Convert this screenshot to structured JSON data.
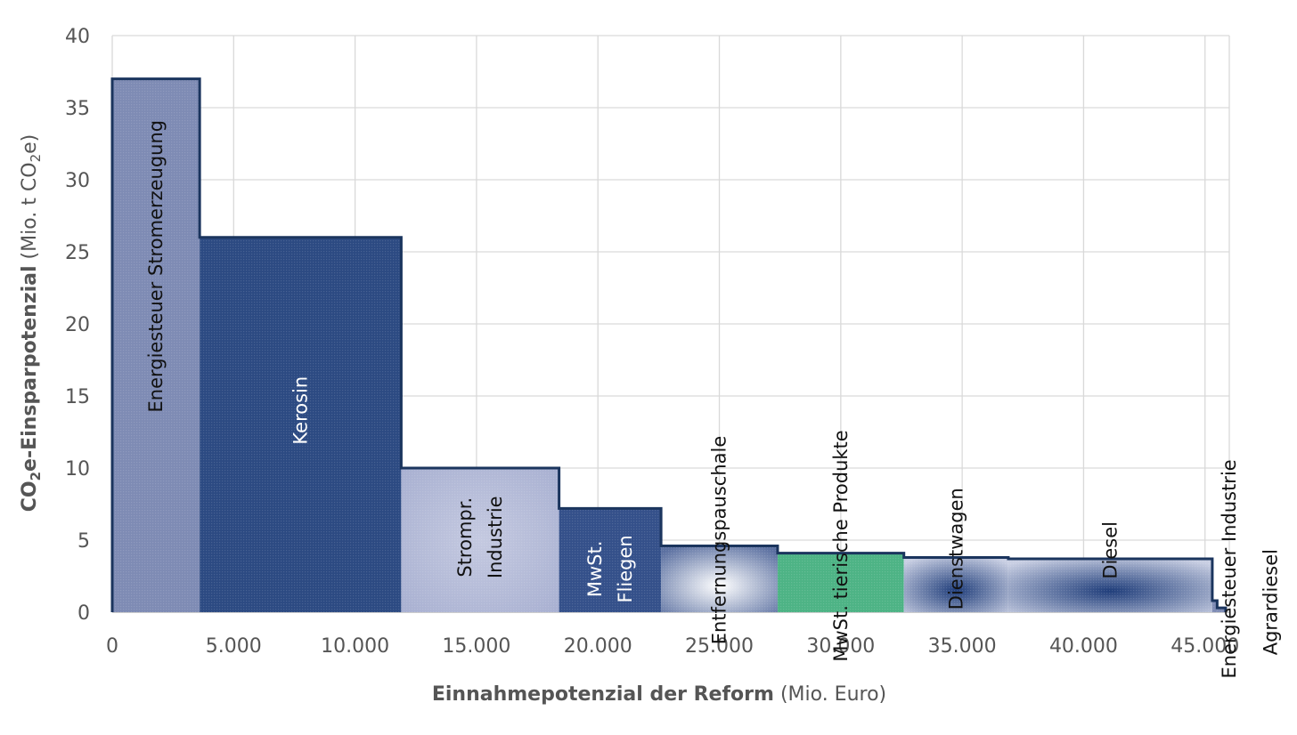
{
  "chart_data": {
    "type": "bar",
    "subtype": "variable-width step bars",
    "xlim": [
      0,
      46000
    ],
    "ylim": [
      0,
      40
    ],
    "grid": true,
    "x_ticks": [
      "0",
      "5.000",
      "10.000",
      "15.000",
      "20.000",
      "25.000",
      "30.000",
      "35.000",
      "40.000",
      "45.000"
    ],
    "y_ticks": [
      "0",
      "5",
      "10",
      "15",
      "20",
      "25",
      "30",
      "35",
      "40"
    ],
    "xlabel": {
      "bold": "Einnahmepotenzial der  Reform",
      "normal": " (Mio. Euro)"
    },
    "ylabel": {
      "bold_a": "CO",
      "bold_sub": "2",
      "bold_b": "e-Einsparpotenzial",
      "normal_a": " (Mio. t CO",
      "normal_sub": "2",
      "normal_b": "e)"
    },
    "segments": [
      {
        "lines": [
          "Energiesteuer Stromerzeugung"
        ],
        "x_start": 0,
        "x_end": 3600,
        "y": 37.0,
        "fill": "#7e8bb4",
        "text_color": "#111111",
        "label_y": 24,
        "style": "flat"
      },
      {
        "lines": [
          "Kerosin"
        ],
        "x_start": 3600,
        "x_end": 11900,
        "y": 26.0,
        "fill": "#2c4a82",
        "text_color": "#ffffff",
        "label_y": 14,
        "style": "flat"
      },
      {
        "lines": [
          "Strompr.",
          "Industrie"
        ],
        "x_start": 11900,
        "x_end": 18400,
        "y": 10.0,
        "fill": "#a6aed0",
        "text_color": "#111111",
        "label_y": 5.2,
        "style": "soft"
      },
      {
        "lines": [
          "MwSt.",
          "Fliegen"
        ],
        "x_start": 18400,
        "x_end": 22600,
        "y": 7.2,
        "fill": "#34508a",
        "text_color": "#ffffff",
        "label_y": 3.0,
        "style": "flat"
      },
      {
        "lines": [
          "Entfernungspauschale"
        ],
        "x_start": 22600,
        "x_end": 27400,
        "y": 4.6,
        "fill": "#ffffff",
        "edge": "#5a6fa0",
        "text_color": "#111111",
        "label_y": 5.0,
        "style": "radial"
      },
      {
        "lines": [
          "MwSt. tierische Produkte"
        ],
        "x_start": 27400,
        "x_end": 32600,
        "y": 4.1,
        "fill": "#4db385",
        "text_color": "#111111",
        "label_y": 4.6,
        "style": "flat"
      },
      {
        "lines": [
          "Dienstwagen"
        ],
        "x_start": 32600,
        "x_end": 36900,
        "y": 3.8,
        "fill": "#1f3d7a",
        "edge": "#c9cfe3",
        "text_color": "#111111",
        "label_y": 4.4,
        "style": "radial"
      },
      {
        "lines": [
          "Diesel"
        ],
        "x_start": 36900,
        "x_end": 45300,
        "y": 3.7,
        "fill": "#1f3d7a",
        "edge": "#c9cfe3",
        "text_color": "#111111",
        "label_y": 4.3,
        "style": "radial"
      },
      {
        "lines": [
          "Energiesteuer Industrie"
        ],
        "x_start": 45300,
        "x_end": 45500,
        "y": 0.8,
        "fill": "#7e8bb4",
        "text_color": "#111111",
        "label_y": 3.0,
        "style": "flat",
        "label_x": 46000
      },
      {
        "lines": [
          "Agrardiesel"
        ],
        "x_start": 45500,
        "x_end": 45850,
        "y": 0.3,
        "fill": "#7e8bb4",
        "text_color": "#111111",
        "label_y": 0.7,
        "style": "flat",
        "label_x": 47700
      }
    ],
    "outline_color": "#1b355e",
    "grid_color": "#d9d9d9"
  }
}
